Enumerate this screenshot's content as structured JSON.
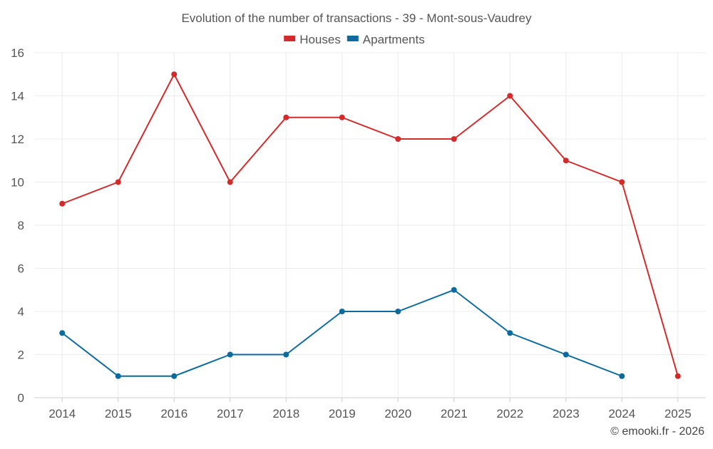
{
  "chart_data": {
    "type": "line",
    "title": "Evolution of the number of transactions - 39 - Mont-sous-Vaudrey",
    "xlabel": "",
    "ylabel": "",
    "categories": [
      "2014",
      "2015",
      "2016",
      "2017",
      "2018",
      "2019",
      "2020",
      "2021",
      "2022",
      "2023",
      "2024",
      "2025"
    ],
    "ylim": [
      0,
      16
    ],
    "yticks": [
      0,
      2,
      4,
      6,
      8,
      10,
      12,
      14,
      16
    ],
    "grid": true,
    "legend_position": "top-center",
    "series": [
      {
        "name": "Houses",
        "color": "#d42a2a",
        "values": [
          9,
          10,
          15,
          10,
          13,
          13,
          12,
          12,
          14,
          11,
          10,
          1
        ]
      },
      {
        "name": "Apartments",
        "color": "#0a6b9e",
        "values": [
          3,
          1,
          1,
          2,
          2,
          4,
          4,
          5,
          3,
          2,
          1,
          null
        ]
      }
    ]
  },
  "credit": "© emooki.fr - 2026"
}
